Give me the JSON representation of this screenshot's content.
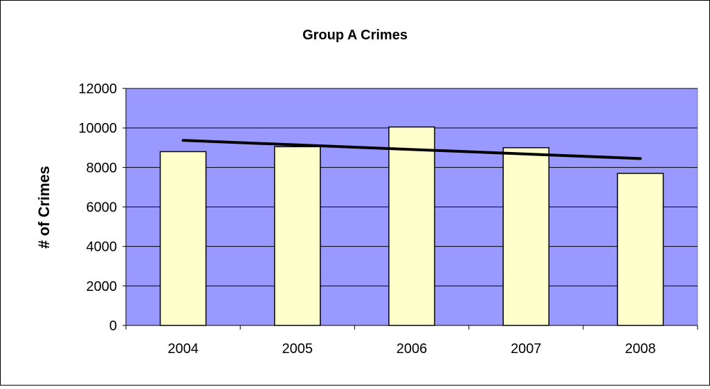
{
  "chart_data": {
    "type": "bar",
    "title": "Group A Crimes",
    "xlabel": "",
    "ylabel": "# of Crimes",
    "categories": [
      "2004",
      "2005",
      "2006",
      "2007",
      "2008"
    ],
    "values": [
      8800,
      9050,
      10050,
      9000,
      7700
    ],
    "ylim": [
      0,
      12000
    ],
    "yticks": [
      "0",
      "2000",
      "4000",
      "6000",
      "8000",
      "10000",
      "12000"
    ],
    "grid": true,
    "legend": "none",
    "trendline": {
      "type": "linear",
      "start": 9370,
      "end": 8450
    },
    "colors": {
      "plot_background": "#9999ff",
      "bar_fill": "#ffffcc",
      "bar_stroke": "#000000",
      "trendline": "#000000",
      "gridline": "#000000"
    }
  }
}
